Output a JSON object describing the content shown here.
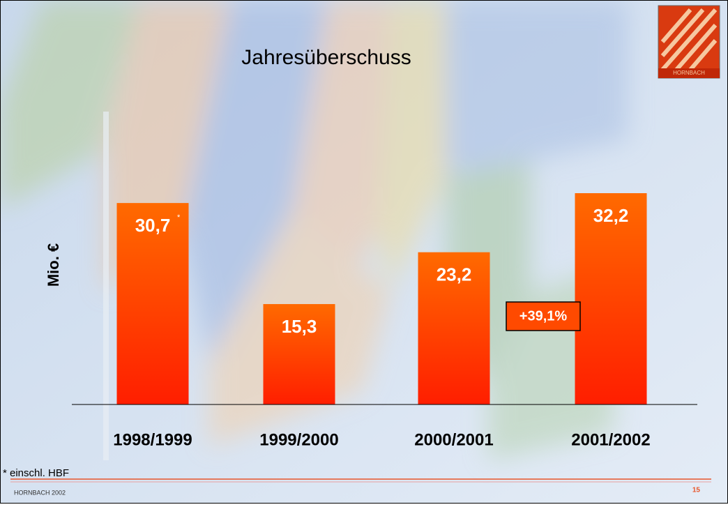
{
  "chart_data": {
    "type": "bar",
    "title": "Jahresüberschuss",
    "y_label": "Mio. €",
    "categories": [
      "1998/1999",
      "1999/2000",
      "2000/2001",
      "2001/2002"
    ],
    "values": [
      30.7,
      15.3,
      23.2,
      32.2
    ],
    "value_labels": [
      "30,7",
      "15,3",
      "23,2",
      "32,2"
    ],
    "value_label_marker": "*",
    "annotation": "+39,1%",
    "footnote": "* einschl. HBF",
    "footer": "HORNBACH 2002",
    "page_number": "15",
    "logo_text": "HORNBACH",
    "color": "#ff4a00"
  }
}
